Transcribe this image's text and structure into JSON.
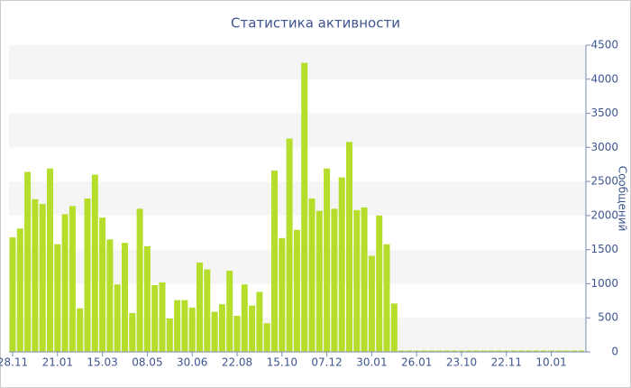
{
  "chart_data": {
    "type": "bar",
    "title": "Статистика активности",
    "y_label": "Сообщений",
    "categories": [
      "28.11",
      null,
      null,
      null,
      null,
      null,
      "21.01",
      null,
      null,
      null,
      null,
      null,
      "15.03",
      null,
      null,
      null,
      null,
      null,
      "08.05",
      null,
      null,
      null,
      null,
      null,
      "30.06",
      null,
      null,
      null,
      null,
      null,
      "22.08",
      null,
      null,
      null,
      null,
      null,
      "15.10",
      null,
      null,
      null,
      null,
      null,
      "07.12",
      null,
      null,
      null,
      null,
      null,
      "30.01",
      null,
      null,
      null,
      null,
      null,
      "26.01",
      null,
      null,
      null,
      null,
      null,
      "23.10",
      null,
      null,
      null,
      null,
      null,
      "22.11",
      null,
      null,
      null,
      null,
      null,
      "10.01",
      null,
      null,
      null,
      null
    ],
    "values": [
      1680,
      1810,
      2640,
      2240,
      2170,
      2690,
      1580,
      2020,
      2140,
      640,
      2250,
      2600,
      1970,
      1650,
      990,
      1600,
      570,
      2100,
      1550,
      980,
      1020,
      490,
      760,
      760,
      650,
      1310,
      1210,
      590,
      700,
      1190,
      530,
      990,
      680,
      880,
      420,
      2660,
      1670,
      3130,
      1790,
      4240,
      2250,
      2070,
      2690,
      2100,
      2560,
      3080,
      2080,
      2120,
      1410,
      2000,
      1580,
      710,
      20,
      20,
      20,
      20,
      20,
      20,
      20,
      20,
      20,
      20,
      20,
      20,
      20,
      20,
      20,
      20,
      20,
      20,
      20,
      20,
      20,
      20,
      20,
      20,
      20
    ],
    "color": "#b5de2c",
    "ylim": [
      0,
      4500
    ],
    "yticks": [
      0,
      500,
      1000,
      1500,
      2000,
      2500,
      3000,
      3500,
      4000,
      4500
    ],
    "grid": "bands",
    "band_color": "#f5f5f5",
    "y_axis_side": "right"
  }
}
